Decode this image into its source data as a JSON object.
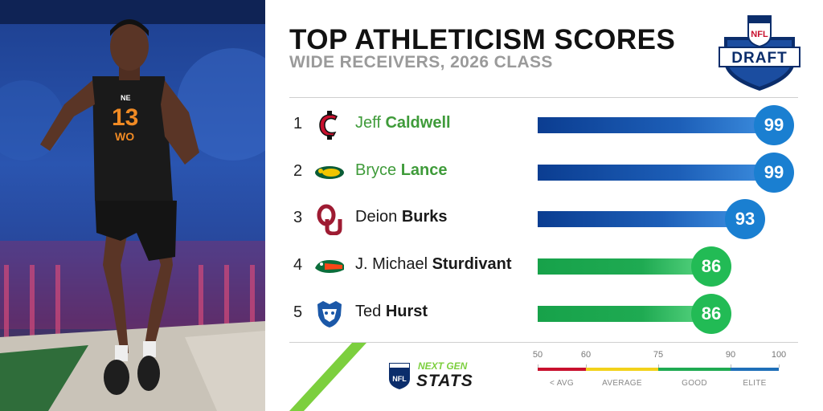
{
  "header": {
    "title": "TOP ATHLETICISM SCORES",
    "subtitle": "WIDE RECEIVERS, 2026 CLASS",
    "logo_shield_text": "NFL",
    "logo_banner_text": "DRAFT"
  },
  "photo": {
    "jersey_number": "13",
    "jersey_position": "WO",
    "jersey_brand": "NE"
  },
  "chart_data": {
    "type": "bar",
    "title": "TOP ATHLETICISM SCORES",
    "subtitle": "WIDE RECEIVERS, 2026 CLASS",
    "xlim": [
      50,
      100
    ],
    "rows": [
      {
        "rank": "1",
        "first": "Jeff",
        "last": "Caldwell",
        "value": 99,
        "tier": "elite",
        "name_highlight": true,
        "school_logo": "cincinnati-c-logo"
      },
      {
        "rank": "2",
        "first": "Bryce",
        "last": "Lance",
        "value": 99,
        "tier": "elite",
        "name_highlight": true,
        "school_logo": "ndsu-bison-logo"
      },
      {
        "rank": "3",
        "first": "Deion",
        "last": "Burks",
        "value": 93,
        "tier": "elite",
        "name_highlight": false,
        "school_logo": "oklahoma-ou-logo"
      },
      {
        "rank": "4",
        "first": "J. Michael",
        "last": "Sturdivant",
        "value": 86,
        "tier": "good",
        "name_highlight": false,
        "school_logo": "florida-gator-logo"
      },
      {
        "rank": "5",
        "first": "Ted",
        "last": "Hurst",
        "value": 86,
        "tier": "good",
        "name_highlight": false,
        "school_logo": "georgia-state-panther-logo"
      }
    ],
    "scale": {
      "ticks": [
        50,
        60,
        75,
        90,
        100
      ],
      "tick_labels": [
        "50",
        "60",
        "75",
        "90",
        "100"
      ],
      "segments": [
        {
          "label": "< AVG",
          "from": 50,
          "to": 60,
          "color": "#c8102e"
        },
        {
          "label": "AVERAGE",
          "from": 60,
          "to": 75,
          "color": "#f2d21b"
        },
        {
          "label": "GOOD",
          "from": 75,
          "to": 90,
          "color": "#1faa52"
        },
        {
          "label": "ELITE",
          "from": 90,
          "to": 100,
          "color": "#1f6fb8"
        }
      ]
    }
  },
  "branding": {
    "ngs_line1": "NEXT GEN",
    "ngs_line2": "STATS",
    "ngs_shield": "NFL"
  },
  "colors": {
    "elite_bar": "#0b3d91",
    "elite_badge": "#1a7fd1",
    "good_bar": "#1faa52",
    "good_badge": "#22bb55",
    "highlight_text": "#3f9b3a"
  }
}
